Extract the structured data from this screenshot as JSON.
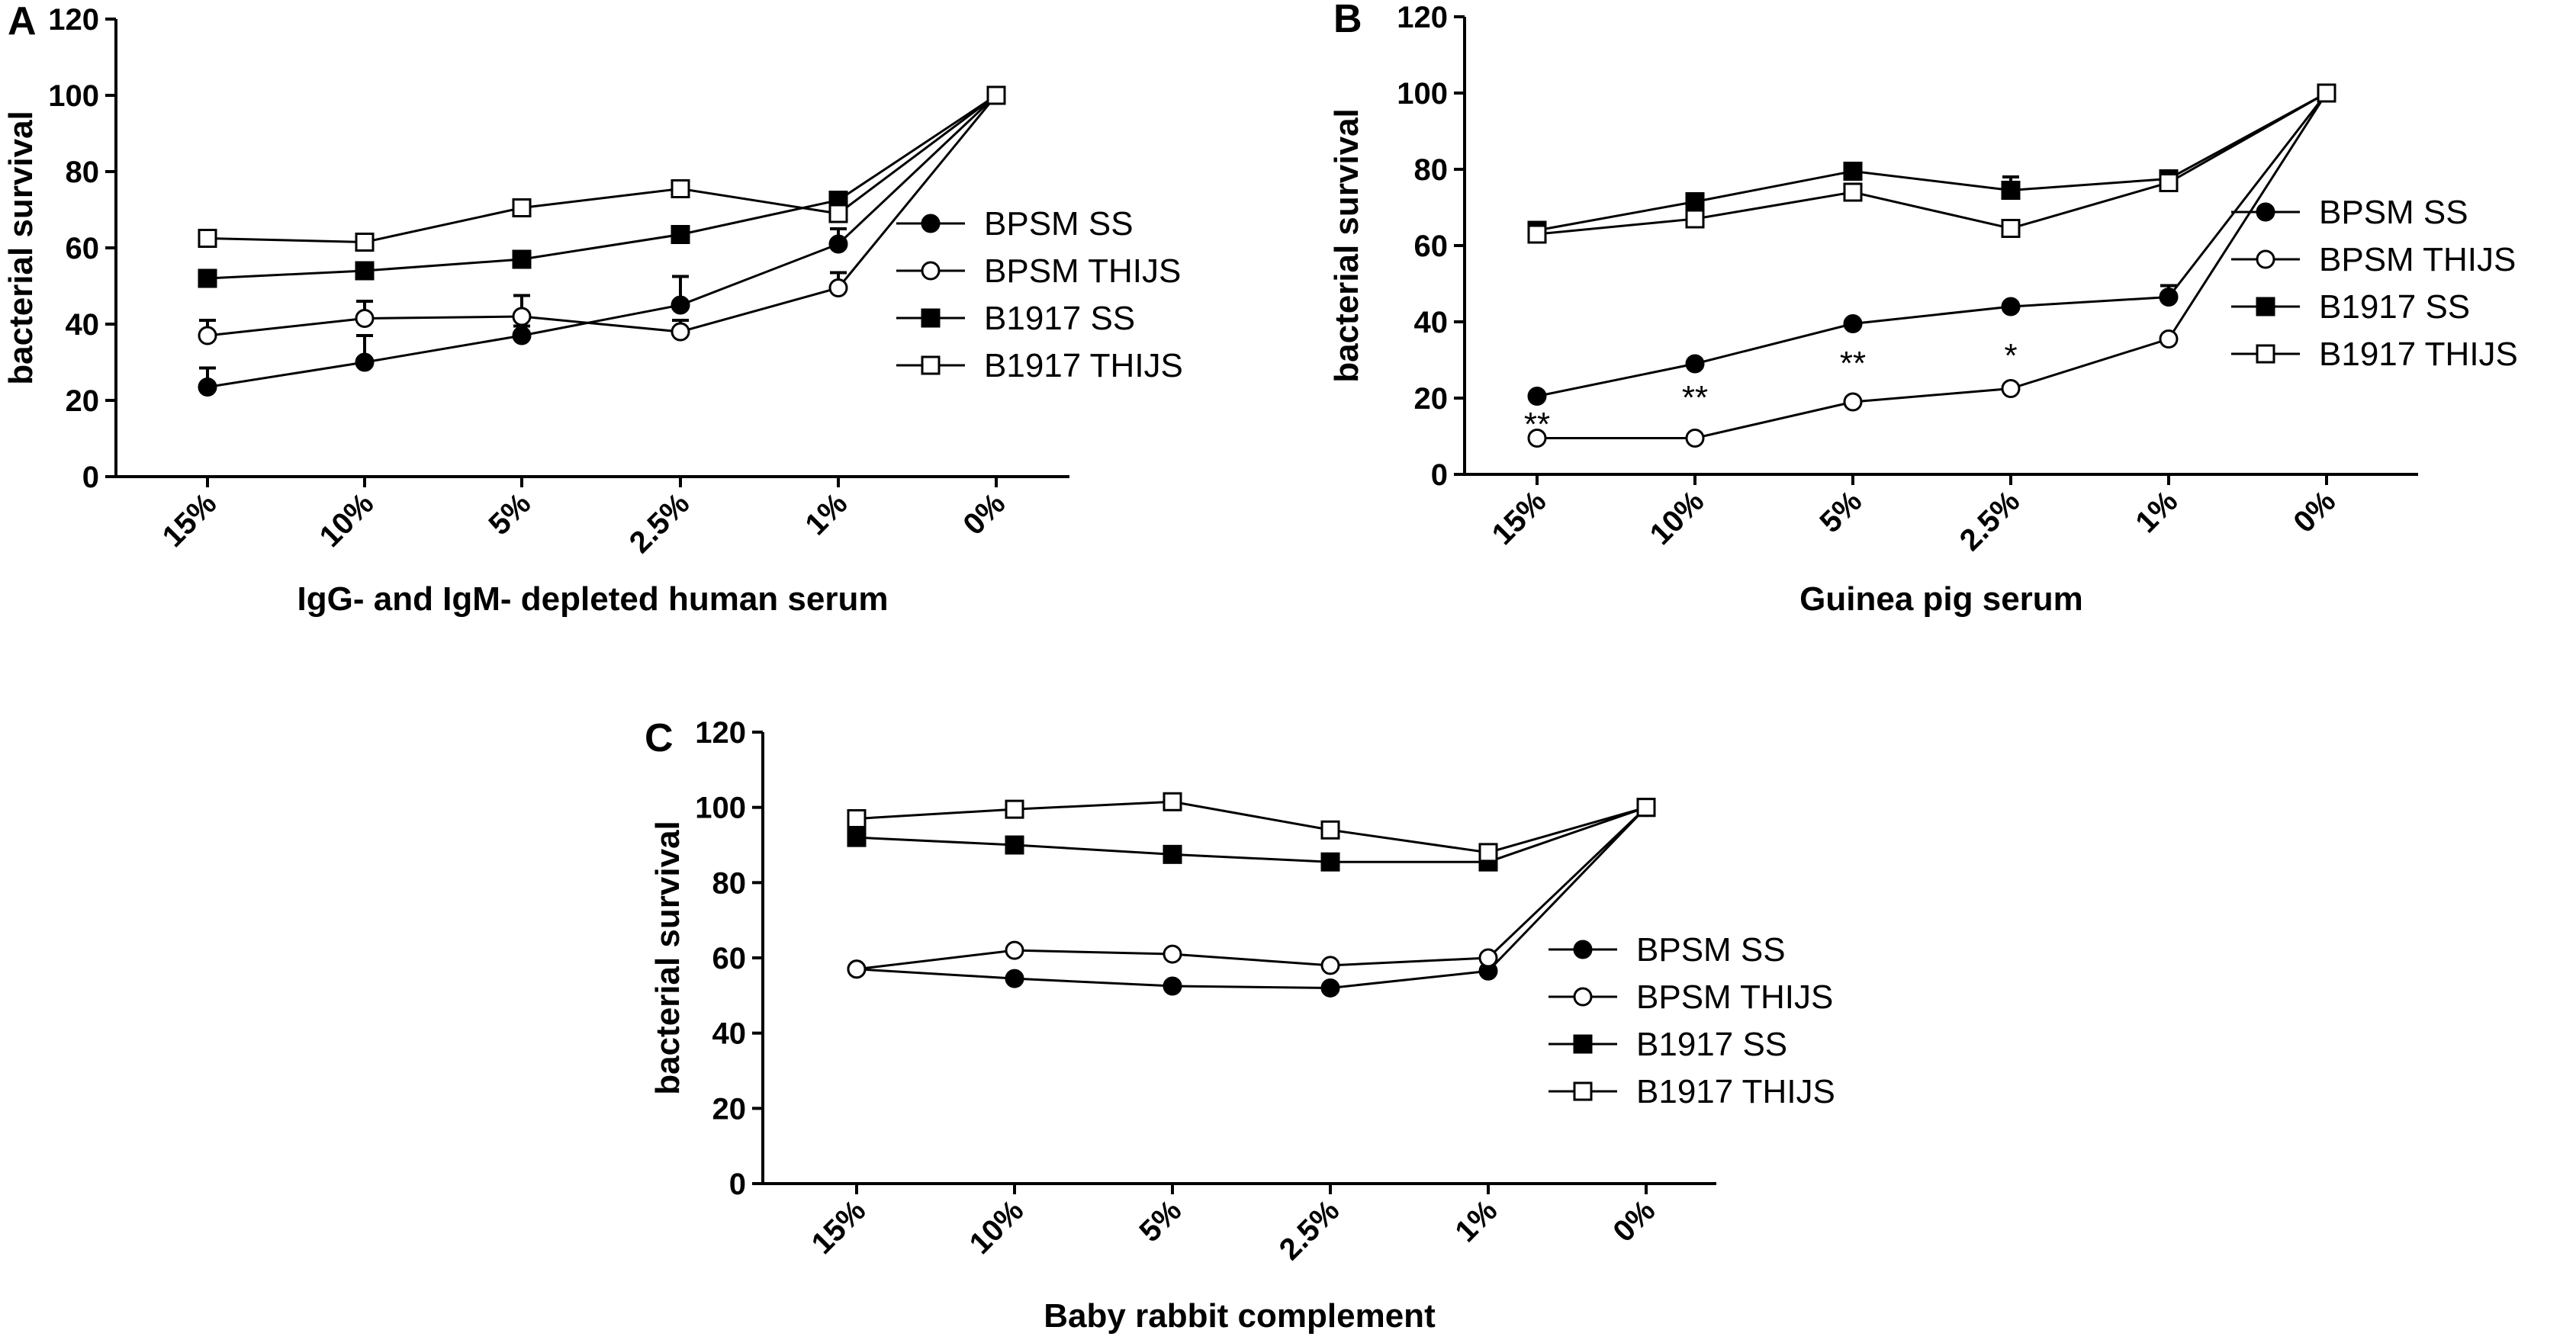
{
  "chart_data": [
    {
      "type": "line",
      "panel": "A",
      "categories": [
        "15%",
        "10%",
        "5%",
        "2.5%",
        "1%",
        "0%"
      ],
      "xlabel": "IgG- and IgM- depleted human serum",
      "ylabel": "bacterial survival",
      "ylim": [
        0,
        120
      ],
      "yticks": [
        0,
        20,
        40,
        60,
        80,
        100,
        120
      ],
      "legend_position": "right",
      "series": [
        {
          "name": "BPSM SS",
          "marker": "filled-circle",
          "values": [
            23.5,
            30,
            37,
            45,
            61,
            100
          ],
          "error": [
            5,
            7,
            2.5,
            7.5,
            4,
            2
          ]
        },
        {
          "name": "BPSM THIJS",
          "marker": "open-circle",
          "values": [
            37,
            41.5,
            42,
            38,
            49.5,
            100
          ],
          "error": [
            4,
            4.5,
            5.5,
            3,
            4,
            2
          ]
        },
        {
          "name": "B1917 SS",
          "marker": "filled-square",
          "values": [
            52,
            54,
            57,
            63.5,
            72.5,
            100
          ],
          "error": [
            0,
            0,
            0,
            0,
            0,
            2
          ]
        },
        {
          "name": "B1917 THIJS",
          "marker": "open-square",
          "values": [
            62.5,
            61.5,
            70.5,
            75.5,
            69,
            100
          ],
          "error": [
            0,
            0,
            0,
            0,
            0,
            2
          ]
        }
      ],
      "annotations": []
    },
    {
      "type": "line",
      "panel": "B",
      "categories": [
        "15%",
        "10%",
        "5%",
        "2.5%",
        "1%",
        "0%"
      ],
      "xlabel": "Guinea pig serum",
      "ylabel": "bacterial survival",
      "ylim": [
        0,
        120
      ],
      "yticks": [
        0,
        20,
        40,
        60,
        80,
        100,
        120
      ],
      "legend_position": "right",
      "series": [
        {
          "name": "BPSM SS",
          "marker": "filled-circle",
          "values": [
            20.5,
            29,
            39.5,
            44,
            46.5,
            100
          ],
          "error": [
            0,
            0,
            0,
            0,
            3,
            2
          ]
        },
        {
          "name": "BPSM THIJS",
          "marker": "open-circle",
          "values": [
            9.5,
            9.5,
            19,
            22.5,
            35.5,
            100
          ],
          "error": [
            0,
            0,
            0,
            0,
            0,
            2
          ]
        },
        {
          "name": "B1917 SS",
          "marker": "filled-square",
          "values": [
            64,
            71.5,
            79.5,
            74.5,
            77.5,
            100
          ],
          "error": [
            0,
            0,
            0,
            3.5,
            0,
            2
          ]
        },
        {
          "name": "B1917 THIJS",
          "marker": "open-square",
          "values": [
            63,
            67,
            74,
            64.5,
            76.5,
            100
          ],
          "error": [
            0,
            0,
            0,
            0,
            0,
            2
          ]
        }
      ],
      "annotations": [
        {
          "text": "**",
          "category": "15%",
          "y": 13
        },
        {
          "text": "**",
          "category": "10%",
          "y": 20
        },
        {
          "text": "**",
          "category": "5%",
          "y": 29
        },
        {
          "text": "*",
          "category": "2.5%",
          "y": 31
        }
      ]
    },
    {
      "type": "line",
      "panel": "C",
      "categories": [
        "15%",
        "10%",
        "5%",
        "2.5%",
        "1%",
        "0%"
      ],
      "xlabel": "Baby rabbit complement",
      "ylabel": "bacterial survival",
      "ylim": [
        0,
        120
      ],
      "yticks": [
        0,
        20,
        40,
        60,
        80,
        100,
        120
      ],
      "legend_position": "right",
      "series": [
        {
          "name": "BPSM SS",
          "marker": "filled-circle",
          "values": [
            57,
            54.5,
            52.5,
            52,
            56.5,
            100
          ],
          "error": [
            0,
            0,
            0,
            0,
            0,
            2
          ]
        },
        {
          "name": "BPSM THIJS",
          "marker": "open-circle",
          "values": [
            57,
            62,
            61,
            58,
            60,
            100
          ],
          "error": [
            0,
            0,
            0,
            0,
            0,
            2
          ]
        },
        {
          "name": "B1917 SS",
          "marker": "filled-square",
          "values": [
            92,
            90,
            87.5,
            85.5,
            85.5,
            100
          ],
          "error": [
            0,
            0,
            0,
            0,
            0,
            2
          ]
        },
        {
          "name": "B1917 THIJS",
          "marker": "open-square",
          "values": [
            97,
            99.5,
            101.5,
            94,
            88,
            100
          ],
          "error": [
            0,
            2,
            0,
            0,
            0,
            2
          ]
        }
      ],
      "annotations": []
    }
  ]
}
